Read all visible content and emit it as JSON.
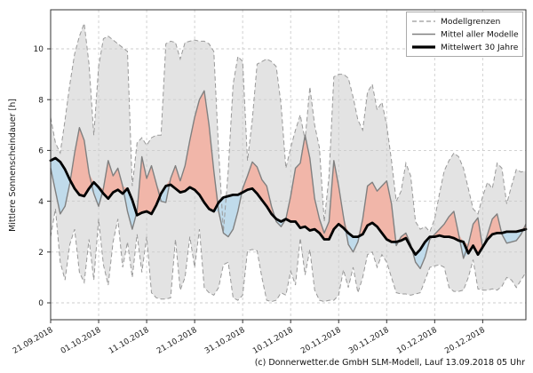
{
  "caption": "(c) Donnerwetter.de GmbH SLM-Modell, Lauf 13.09.2018 05 Uhr",
  "chart_data": {
    "type": "line",
    "title": "",
    "xlabel": "",
    "ylabel": "Mittlere Sonnenscheindauer [h]",
    "ylim": [
      -0.7,
      11.6
    ],
    "yticks": [
      0,
      2,
      4,
      6,
      8,
      10
    ],
    "grid": true,
    "n_days": 100,
    "x_tick_days": [
      0,
      10,
      20,
      30,
      40,
      50,
      60,
      70,
      80,
      90
    ],
    "x_tick_labels": [
      "21.09.2018",
      "01.10.2018",
      "11.10.2018",
      "21.10.2018",
      "31.10.2018",
      "10.11.2018",
      "20.11.2018",
      "30.11.2018",
      "10.12.2018",
      "20.12.2018"
    ],
    "legend": [
      {
        "label": "Modellgrenzen",
        "style": "dashed-gray"
      },
      {
        "label": "Mittel aller Modelle",
        "style": "solid-gray"
      },
      {
        "label": "Mittelwert 30 Jahre",
        "style": "thick-black"
      }
    ],
    "colors": {
      "band_fill": "#e3e3e3",
      "band_border": "#999999",
      "above_fill": "#f1b6a9",
      "below_fill": "#c0dbeb",
      "mean_line": "#808080",
      "clim_line": "#000000",
      "grid": "#cccccc",
      "spine": "#333333",
      "legend_border": "#aaaaaa"
    },
    "series": [
      {
        "name": "Modellgrenzen (oberes Limit)",
        "role": "upper",
        "values": [
          7.3,
          6.3,
          5.9,
          7.2,
          8.6,
          9.8,
          10.5,
          11.0,
          9.4,
          6.6,
          9.3,
          10.4,
          10.5,
          10.35,
          10.2,
          10.05,
          9.9,
          4.6,
          6.3,
          6.5,
          6.2,
          6.5,
          6.6,
          6.6,
          10.2,
          10.3,
          10.25,
          9.6,
          10.25,
          10.3,
          10.35,
          10.3,
          10.3,
          10.2,
          9.9,
          6.0,
          2.8,
          5.2,
          8.6,
          9.7,
          9.5,
          5.6,
          7.2,
          9.4,
          9.5,
          9.6,
          9.5,
          9.3,
          7.8,
          5.3,
          6.1,
          6.8,
          7.4,
          6.4,
          8.5,
          7.0,
          6.1,
          3.2,
          5.0,
          8.9,
          9.0,
          9.0,
          8.85,
          8.1,
          7.2,
          6.8,
          8.3,
          8.6,
          7.6,
          7.9,
          7.0,
          5.6,
          4.0,
          4.4,
          5.5,
          5.0,
          3.2,
          2.9,
          3.0,
          2.8,
          3.3,
          4.3,
          5.2,
          5.6,
          5.9,
          5.75,
          5.3,
          4.5,
          3.7,
          3.5,
          4.2,
          4.75,
          4.5,
          5.5,
          5.3,
          3.9,
          4.6,
          5.25,
          5.15,
          5.2
        ]
      },
      {
        "name": "Modellgrenzen (unteres Limit)",
        "role": "lower",
        "values": [
          2.6,
          3.7,
          1.6,
          0.9,
          2.3,
          2.9,
          1.2,
          0.8,
          2.5,
          0.9,
          3.3,
          1.5,
          0.7,
          2.4,
          3.3,
          1.4,
          2.4,
          1.0,
          2.7,
          1.2,
          2.6,
          0.4,
          0.2,
          0.15,
          0.15,
          0.2,
          2.5,
          0.5,
          1.0,
          2.6,
          1.4,
          2.9,
          0.6,
          0.4,
          0.3,
          0.6,
          1.5,
          1.6,
          0.2,
          0.1,
          0.3,
          2.05,
          2.1,
          2.05,
          1.0,
          0.1,
          0.05,
          0.1,
          0.4,
          0.3,
          1.25,
          0.7,
          2.55,
          1.1,
          2.1,
          0.5,
          0.1,
          0.05,
          0.1,
          0.1,
          0.3,
          1.3,
          0.6,
          1.4,
          0.4,
          1.0,
          1.9,
          2.0,
          1.4,
          1.9,
          1.6,
          1.0,
          0.4,
          0.35,
          0.35,
          0.3,
          0.35,
          0.4,
          0.9,
          1.4,
          1.45,
          1.5,
          1.4,
          0.6,
          0.45,
          0.45,
          0.5,
          1.0,
          1.7,
          0.55,
          0.5,
          0.5,
          0.55,
          0.5,
          0.65,
          1.0,
          0.9,
          0.6,
          0.9,
          1.2
        ]
      },
      {
        "name": "Mittel aller Modelle",
        "role": "mean",
        "values": [
          5.3,
          4.4,
          3.5,
          3.8,
          4.7,
          5.9,
          6.9,
          6.4,
          5.1,
          4.3,
          3.8,
          4.5,
          5.6,
          5.0,
          5.3,
          4.6,
          3.6,
          2.9,
          3.6,
          5.75,
          4.9,
          5.4,
          4.7,
          4.0,
          3.95,
          4.9,
          5.4,
          4.8,
          5.4,
          6.4,
          7.3,
          8.0,
          8.35,
          7.0,
          5.2,
          3.6,
          2.75,
          2.6,
          2.9,
          3.6,
          4.5,
          5.0,
          5.55,
          5.35,
          4.85,
          4.6,
          3.8,
          3.2,
          3.0,
          3.3,
          4.2,
          5.3,
          5.5,
          6.6,
          5.7,
          4.1,
          3.3,
          2.75,
          3.2,
          5.6,
          4.6,
          3.4,
          2.3,
          2.0,
          2.4,
          3.3,
          4.6,
          4.75,
          4.4,
          4.6,
          4.8,
          3.9,
          2.25,
          2.6,
          2.75,
          2.3,
          1.6,
          1.35,
          1.8,
          2.5,
          2.7,
          2.9,
          3.1,
          3.4,
          3.6,
          2.7,
          1.75,
          2.3,
          3.1,
          3.35,
          2.15,
          2.7,
          3.3,
          3.5,
          2.7,
          2.35,
          2.4,
          2.45,
          2.7,
          3.1
        ]
      },
      {
        "name": "Mittelwert 30 Jahre",
        "role": "clim",
        "values": [
          5.6,
          5.7,
          5.55,
          5.25,
          4.85,
          4.5,
          4.25,
          4.2,
          4.5,
          4.75,
          4.55,
          4.3,
          4.1,
          4.35,
          4.45,
          4.3,
          4.5,
          4.05,
          3.45,
          3.55,
          3.6,
          3.5,
          3.85,
          4.3,
          4.6,
          4.65,
          4.5,
          4.35,
          4.4,
          4.55,
          4.45,
          4.25,
          3.95,
          3.7,
          3.6,
          3.95,
          4.15,
          4.2,
          4.25,
          4.25,
          4.35,
          4.45,
          4.5,
          4.3,
          4.05,
          3.8,
          3.5,
          3.3,
          3.2,
          3.3,
          3.2,
          3.2,
          2.95,
          3.0,
          2.85,
          2.9,
          2.75,
          2.5,
          2.5,
          2.9,
          3.1,
          2.95,
          2.75,
          2.6,
          2.6,
          2.7,
          3.05,
          3.15,
          3.0,
          2.75,
          2.5,
          2.4,
          2.4,
          2.45,
          2.55,
          2.2,
          1.9,
          2.1,
          2.4,
          2.6,
          2.6,
          2.65,
          2.6,
          2.6,
          2.55,
          2.45,
          2.4,
          1.95,
          2.25,
          1.9,
          2.2,
          2.5,
          2.7,
          2.75,
          2.75,
          2.8,
          2.8,
          2.8,
          2.85,
          2.9
        ]
      }
    ]
  }
}
